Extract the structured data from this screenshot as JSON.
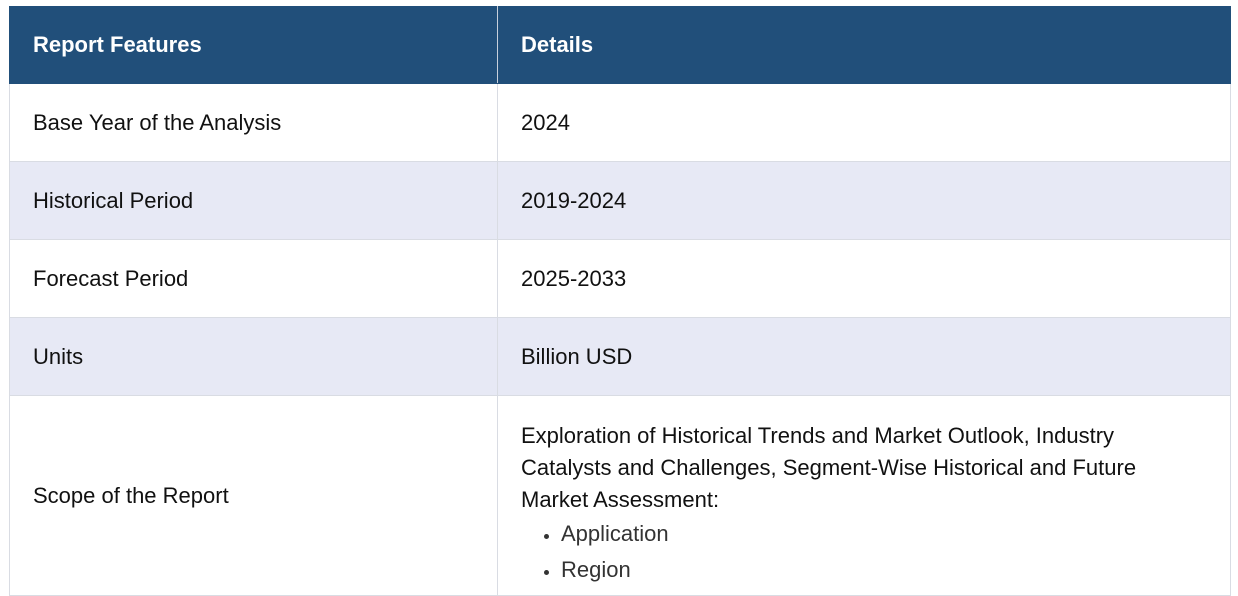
{
  "table": {
    "headers": [
      "Report Features",
      "Details"
    ],
    "rows": [
      {
        "feature": "Base Year of the Analysis",
        "detail": "2024"
      },
      {
        "feature": "Historical Period",
        "detail": "2019-2024"
      },
      {
        "feature": "Forecast Period",
        "detail": "2025-2033"
      },
      {
        "feature": "Units",
        "detail": "Billion USD"
      }
    ],
    "scope": {
      "feature": "Scope of the Report",
      "description": "Exploration of Historical Trends and Market Outlook, Industry Catalysts and Challenges, Segment-Wise Historical and Future Market Assessment:",
      "items": [
        "Application",
        "Region"
      ]
    }
  },
  "colors": {
    "header_bg": "#214f7a",
    "alt_row_bg": "#e7e9f5"
  }
}
